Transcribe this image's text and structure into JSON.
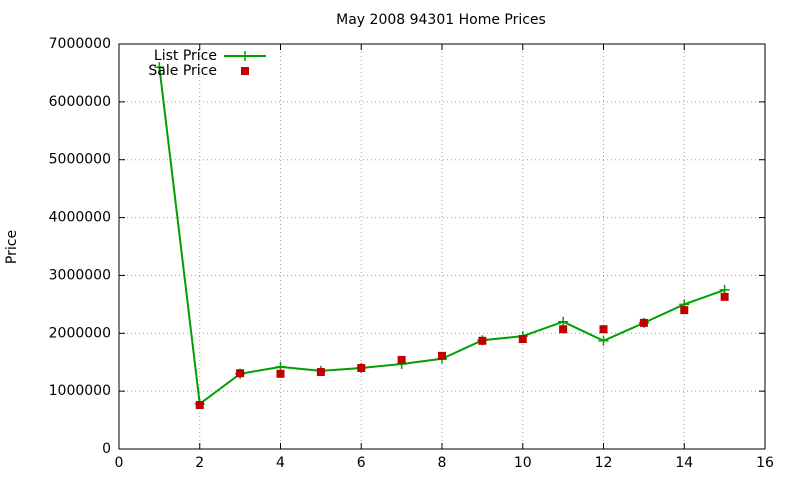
{
  "chart_data": {
    "type": "line",
    "title": "May 2008 94301 Home Prices",
    "ylabel": "Price",
    "x": [
      1,
      2,
      3,
      4,
      5,
      6,
      7,
      8,
      9,
      10,
      11,
      12,
      13,
      14,
      15
    ],
    "series": [
      {
        "name": "List Price",
        "color": "#00a000",
        "style": "linespoints",
        "values": [
          6600000,
          780000,
          1300000,
          1420000,
          1350000,
          1400000,
          1470000,
          1560000,
          1880000,
          1950000,
          2200000,
          1870000,
          2180000,
          2500000,
          2750000
        ]
      },
      {
        "name": "Sale Price",
        "color": "#c00000",
        "style": "points",
        "values": [
          null,
          760000,
          1310000,
          1300000,
          1330000,
          1400000,
          1540000,
          1610000,
          1870000,
          1900000,
          2070000,
          2070000,
          2180000,
          2400000,
          2630000
        ]
      }
    ],
    "xlim": [
      0,
      16
    ],
    "xticks": [
      0,
      2,
      4,
      6,
      8,
      10,
      12,
      14,
      16
    ],
    "ylim": [
      0,
      7000000
    ],
    "yticks": [
      0,
      1000000,
      2000000,
      3000000,
      4000000,
      5000000,
      6000000,
      7000000
    ],
    "grid": true,
    "legend": "top-left"
  }
}
